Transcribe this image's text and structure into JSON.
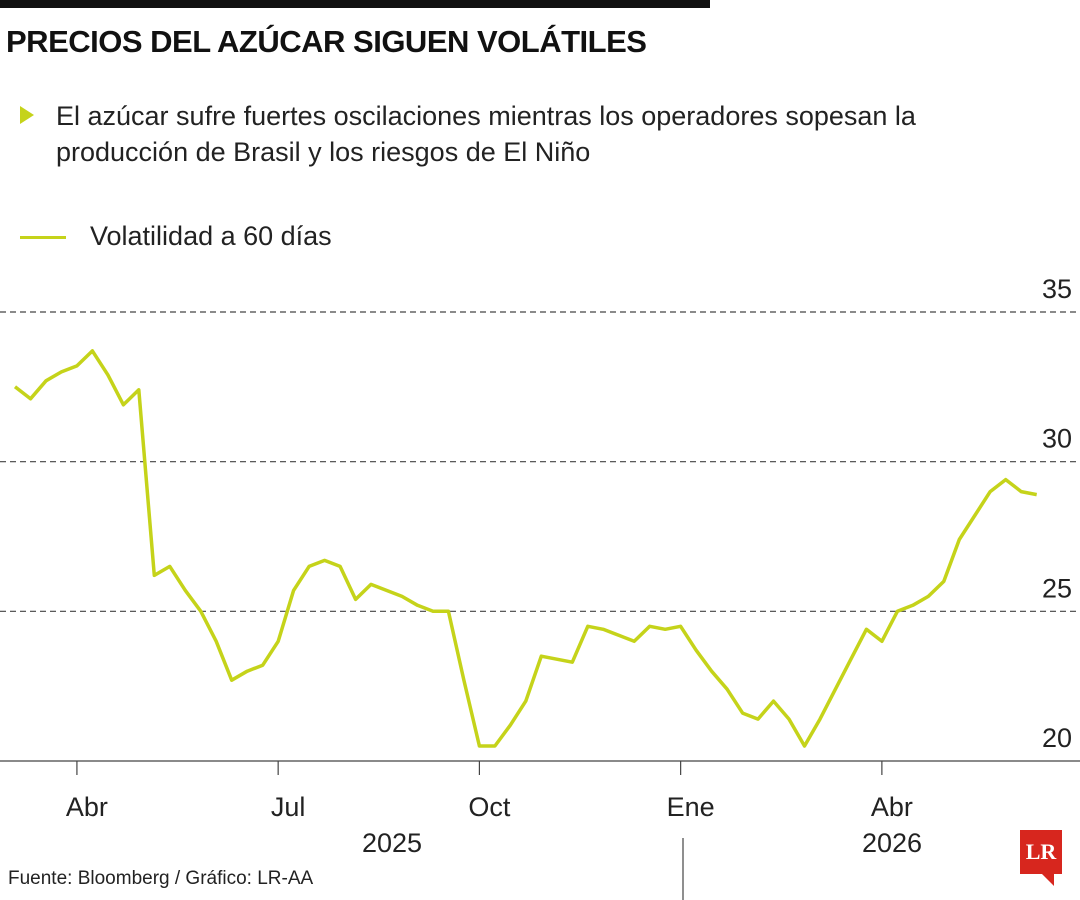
{
  "chart_data": {
    "type": "line",
    "title": "PRECIOS DEL AZÚCAR SIGUEN VOLÁTILES",
    "subtitle": "El azúcar sufre fuertes oscilaciones mientras los operadores sopesan la producción de Brasil y los riesgos de El Niño",
    "categories": [
      null,
      null,
      null,
      null,
      "Abr",
      null,
      null,
      null,
      null,
      null,
      null,
      null,
      null,
      null,
      null,
      null,
      null,
      "Jul",
      null,
      null,
      null,
      null,
      null,
      null,
      null,
      null,
      null,
      null,
      null,
      null,
      "Oct",
      null,
      null,
      null,
      null,
      null,
      null,
      null,
      null,
      null,
      null,
      null,
      null,
      "Ene",
      null,
      null,
      null,
      null,
      null,
      null,
      null,
      null,
      null,
      null,
      null,
      null,
      "Abr",
      null,
      null,
      null,
      null,
      null,
      null,
      null,
      null,
      null,
      null
    ],
    "years": [
      "2025",
      "2026"
    ],
    "series": [
      {
        "name": "Volatilidad a 60 días",
        "color": "#c5d31a",
        "values": [
          32.5,
          32.1,
          32.7,
          33.0,
          33.2,
          33.7,
          32.9,
          31.9,
          32.4,
          26.2,
          26.5,
          25.7,
          25.0,
          24.0,
          22.7,
          23.0,
          23.2,
          24.0,
          25.7,
          26.5,
          26.7,
          26.5,
          25.4,
          25.9,
          25.7,
          25.5,
          25.2,
          25.0,
          25.0,
          22.7,
          20.5,
          20.5,
          21.2,
          22.0,
          23.5,
          23.4,
          23.3,
          24.5,
          24.4,
          24.2,
          24.0,
          24.5,
          24.4,
          24.5,
          23.7,
          23.0,
          22.4,
          21.6,
          21.4,
          22.0,
          21.4,
          20.5,
          21.4,
          22.4,
          23.4,
          24.4,
          24.0,
          25.0,
          25.2,
          25.5,
          26.0,
          27.4,
          28.2,
          29.0,
          29.4,
          29.0,
          28.9
        ]
      }
    ],
    "ylim": [
      20,
      35
    ],
    "yticks": [
      20,
      25,
      30,
      35
    ],
    "grid": true,
    "source": "Fuente: Bloomberg / Gráfico: LR-AA",
    "logo": "LR"
  }
}
